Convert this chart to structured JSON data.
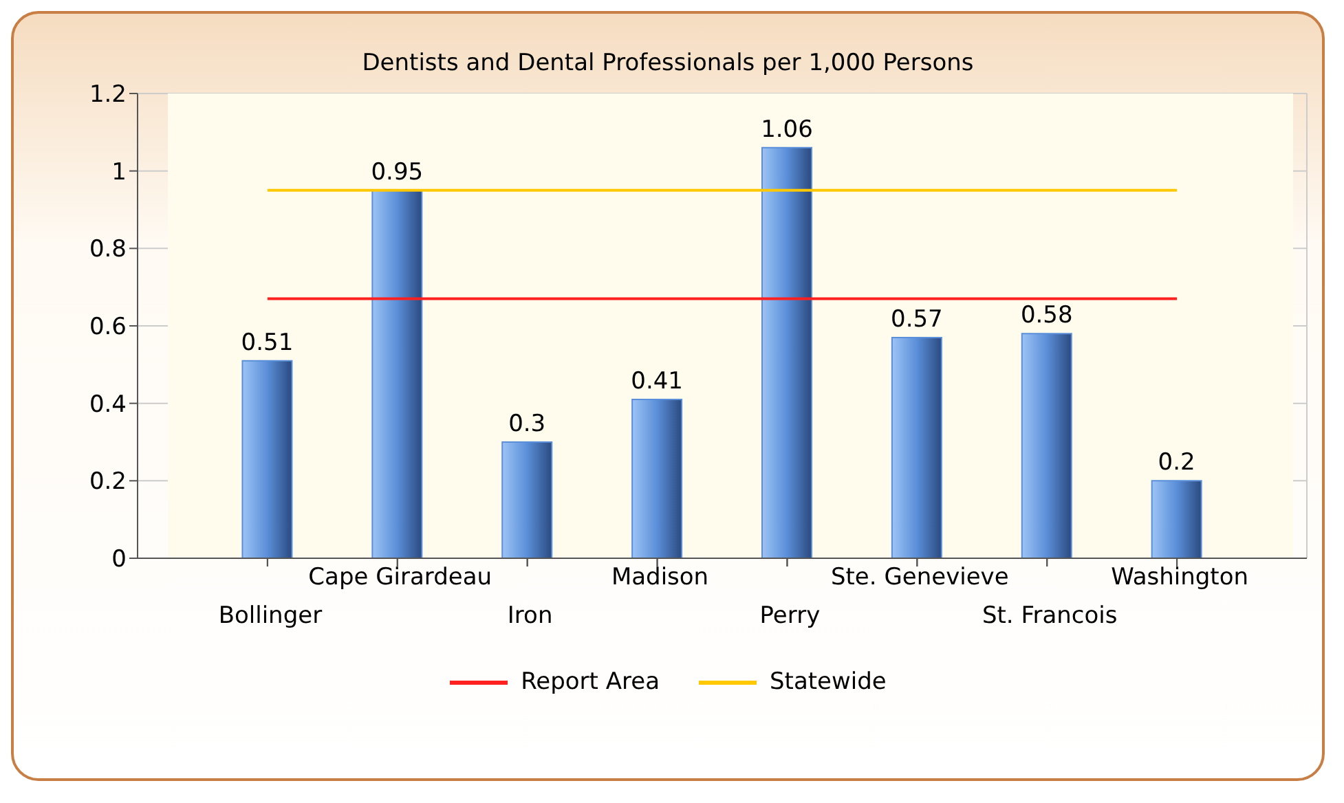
{
  "chart_data": {
    "type": "bar",
    "title": "Dentists and Dental Professionals per 1,000 Persons",
    "categories": [
      "Bollinger",
      "Cape Girardeau",
      "Iron",
      "Madison",
      "Perry",
      "Ste. Genevieve",
      "St. Francois",
      "Washington"
    ],
    "series": [
      {
        "color": "#5b8fd9",
        "values": [
          0.51,
          0.95,
          0.3,
          0.41,
          1.06,
          0.57,
          0.58,
          0.2
        ],
        "value_labels": [
          "0.51",
          "0.95",
          "0.3",
          "0.41",
          "1.06",
          "0.57",
          "0.58",
          "0.2"
        ]
      },
      {
        "type": "line",
        "name": "Report Area",
        "color": "#ff2020",
        "values": [
          0.67,
          0.67,
          0.67,
          0.67,
          0.67,
          0.67,
          0.67,
          0.67
        ]
      },
      {
        "type": "line",
        "name": "Statewide",
        "color": "#ffc800",
        "values": [
          0.95,
          0.95,
          0.95,
          0.95,
          0.95,
          0.95,
          0.95,
          0.95
        ]
      }
    ],
    "ylim": [
      0,
      1.2
    ],
    "yticks": [
      0,
      0.2,
      0.4,
      0.6,
      0.8,
      1,
      1.2
    ],
    "grid": true,
    "legend": "bottom",
    "marker": "none"
  }
}
